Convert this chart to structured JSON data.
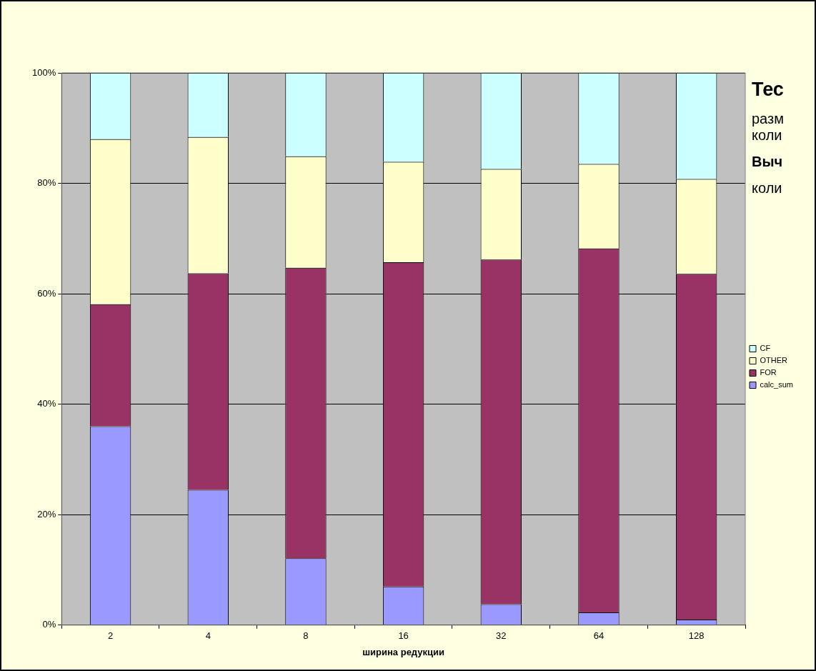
{
  "chart_data": {
    "type": "bar",
    "stacked": true,
    "xlabel": "ширина редукции",
    "categories": [
      "2",
      "4",
      "8",
      "16",
      "32",
      "64",
      "128"
    ],
    "series": [
      {
        "name": "calc_sum",
        "color": "#9999ff",
        "values": [
          36.0,
          24.5,
          12.1,
          7.0,
          3.8,
          2.3,
          1.0
        ]
      },
      {
        "name": "FOR",
        "color": "#993366",
        "values": [
          22.1,
          39.2,
          52.6,
          58.7,
          62.4,
          65.9,
          62.6
        ]
      },
      {
        "name": "OTHER",
        "color": "#ffffcc",
        "values": [
          29.9,
          24.7,
          20.2,
          18.2,
          16.4,
          15.3,
          17.2
        ]
      },
      {
        "name": "CF",
        "color": "#ccffff",
        "values": [
          12.0,
          11.6,
          15.1,
          16.1,
          17.4,
          16.5,
          19.2
        ]
      }
    ],
    "ylim": [
      0,
      100
    ],
    "yticks": [
      {
        "value": 0,
        "label": "0%"
      },
      {
        "value": 20,
        "label": "20%"
      },
      {
        "value": 40,
        "label": "40%"
      },
      {
        "value": 60,
        "label": "60%"
      },
      {
        "value": 80,
        "label": "80%"
      },
      {
        "value": 100,
        "label": "100%"
      }
    ],
    "grid": "y",
    "legend": "right",
    "annotations": [
      "Тес",
      "разм",
      "коли",
      "Выч",
      "коли"
    ]
  }
}
